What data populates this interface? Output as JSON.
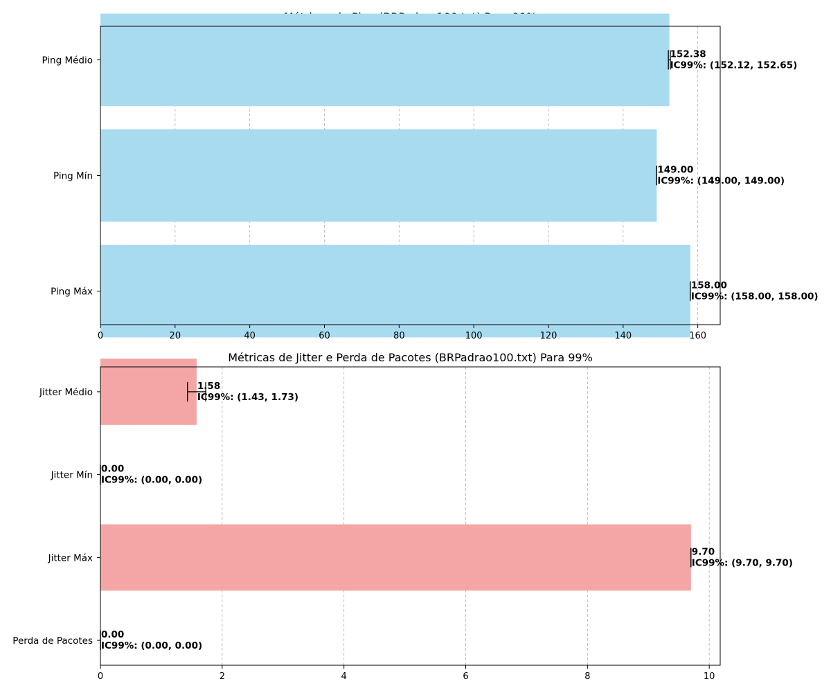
{
  "chart_data": [
    {
      "type": "bar",
      "orientation": "horizontal",
      "title": "Métricas de Ping (BRPadrao100.txt) Para 99%",
      "xlabel": "",
      "ylabel": "",
      "categories": [
        "Ping Médio",
        "Ping Mín",
        "Ping Máx"
      ],
      "values": [
        152.38,
        149.0,
        158.0
      ],
      "ci": [
        [
          152.12,
          152.65
        ],
        [
          149.0,
          149.0
        ],
        [
          158.0,
          158.0
        ]
      ],
      "value_labels": [
        "152.38",
        "149.00",
        "158.00"
      ],
      "ci_labels": [
        "IC99%: (152.12, 152.65)",
        "IC99%: (149.00, 149.00)",
        "IC99%: (158.00, 158.00)"
      ],
      "xlim": [
        0,
        166
      ],
      "xticks": [
        0,
        20,
        40,
        60,
        80,
        100,
        120,
        140,
        160
      ],
      "xtick_labels": [
        "0",
        "20",
        "40",
        "60",
        "80",
        "100",
        "120",
        "140",
        "160"
      ],
      "grid": "x-dashed",
      "color": "#a8dbef"
    },
    {
      "type": "bar",
      "orientation": "horizontal",
      "title": "Métricas de Jitter e Perda de Pacotes (BRPadrao100.txt) Para 99%",
      "xlabel": "",
      "ylabel": "",
      "categories": [
        "Jitter Médio",
        "Jitter Mín",
        "Jitter Máx",
        "Perda de Pacotes"
      ],
      "values": [
        1.58,
        0.0,
        9.7,
        0.0
      ],
      "ci": [
        [
          1.43,
          1.73
        ],
        [
          0.0,
          0.0
        ],
        [
          9.7,
          9.7
        ],
        [
          0.0,
          0.0
        ]
      ],
      "value_labels": [
        "1.58",
        "0.00",
        "9.70",
        "0.00"
      ],
      "ci_labels": [
        "IC99%: (1.43, 1.73)",
        "IC99%: (0.00, 0.00)",
        "IC99%: (9.70, 9.70)",
        "IC99%: (0.00, 0.00)"
      ],
      "xlim": [
        0,
        10.18
      ],
      "xticks": [
        0,
        2,
        4,
        6,
        8,
        10
      ],
      "xtick_labels": [
        "0",
        "2",
        "4",
        "6",
        "8",
        "10"
      ],
      "grid": "x-dashed",
      "color": "#f4a6a6"
    }
  ]
}
